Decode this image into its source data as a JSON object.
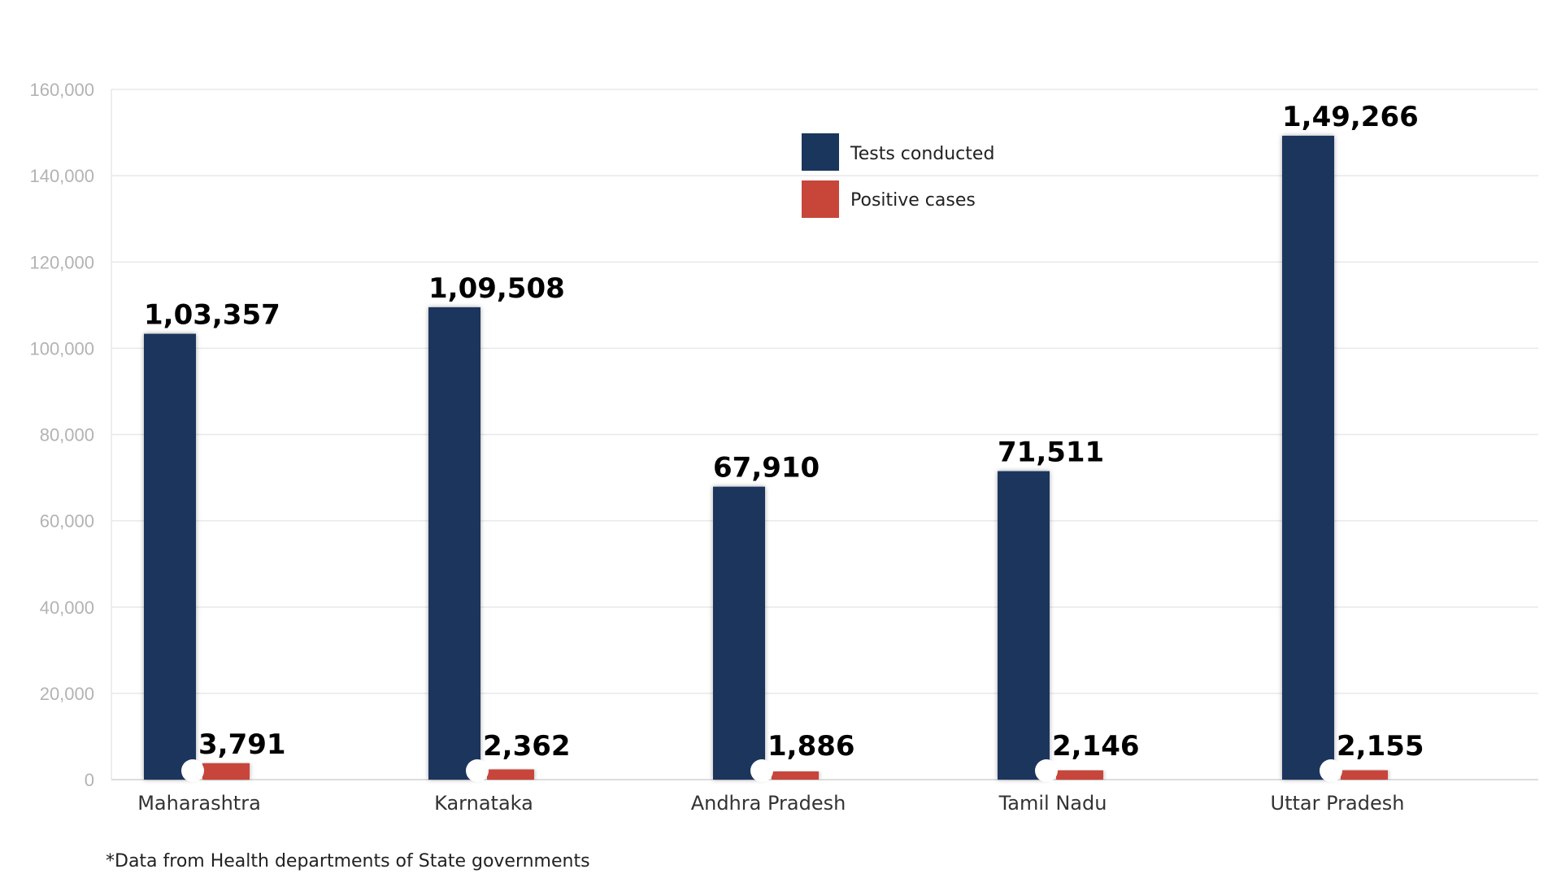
{
  "chart_data": {
    "type": "bar",
    "categories": [
      "Maharashtra",
      "Karnataka",
      "Andhra Pradesh",
      "Tamil Nadu",
      "Uttar Pradesh"
    ],
    "series": [
      {
        "name": "Tests conducted",
        "values": [
          103357,
          109508,
          67910,
          71511,
          149266
        ],
        "labels": [
          "1,03,357",
          "1,09,508",
          "67,910",
          "71,511",
          "1,49,266"
        ],
        "color": "#1b365d"
      },
      {
        "name": "Positive cases",
        "values": [
          3791,
          2362,
          1886,
          2146,
          2155
        ],
        "labels": [
          "3,791",
          "2,362",
          "1,886",
          "2,146",
          "2,155"
        ],
        "color": "#c8453a"
      }
    ],
    "ylim": [
      0,
      160000
    ],
    "yticks": [
      "0",
      "20,000",
      "40,000",
      "60,000",
      "80,000",
      "100,000",
      "120,000",
      "140,000",
      "160,000"
    ],
    "grid": true,
    "legend_position": "top-center"
  },
  "footnote": "*Data from Health departments of State governments"
}
